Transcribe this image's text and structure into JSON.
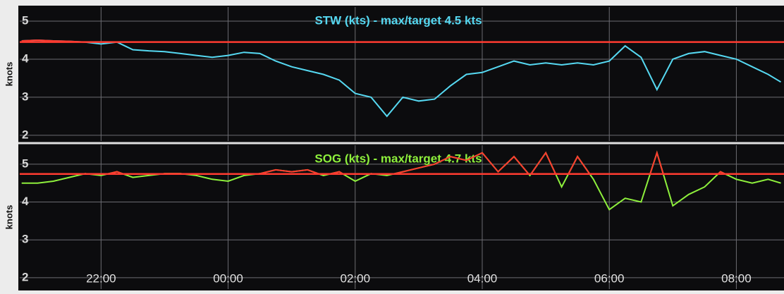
{
  "chart_data": [
    {
      "type": "line",
      "title": "STW (kts) - max/target 4.5 kts",
      "ylabel": "knots",
      "x": [
        20.75,
        21,
        21.25,
        21.5,
        21.75,
        22,
        22.25,
        22.5,
        22.75,
        23,
        23.25,
        23.5,
        23.75,
        24,
        24.25,
        24.5,
        24.75,
        25,
        25.25,
        25.5,
        25.75,
        26,
        26.25,
        26.5,
        26.75,
        27,
        27.25,
        27.5,
        27.75,
        28,
        28.25,
        28.5,
        28.75,
        29,
        29.25,
        29.5,
        29.75,
        30,
        30.25,
        30.5,
        30.75,
        31,
        31.25,
        31.5,
        31.75,
        32,
        32.25,
        32.5,
        32.7
      ],
      "values": [
        4.48,
        4.5,
        4.48,
        4.47,
        4.45,
        4.4,
        4.45,
        4.25,
        4.22,
        4.2,
        4.15,
        4.1,
        4.05,
        4.1,
        4.18,
        4.15,
        3.95,
        3.8,
        3.7,
        3.6,
        3.45,
        3.1,
        3.0,
        2.5,
        3.0,
        2.9,
        2.95,
        3.3,
        3.6,
        3.65,
        3.8,
        3.95,
        3.85,
        3.9,
        3.85,
        3.9,
        3.85,
        3.95,
        4.35,
        4.05,
        3.2,
        4.0,
        4.15,
        4.2,
        4.1,
        4.0,
        3.8,
        3.6,
        3.4
      ],
      "color": "#56d9f2",
      "target": 4.45,
      "above_color": "#ff3b30",
      "xlim": [
        20.72,
        32.75
      ],
      "ylim": [
        1.85,
        5.37
      ],
      "yticks": [
        2,
        3,
        4,
        5
      ],
      "grid": true
    },
    {
      "type": "line",
      "title": "SOG (kts) - max/target 4.7 kts",
      "ylabel": "knots",
      "x": [
        20.75,
        21,
        21.25,
        21.5,
        21.75,
        22,
        22.25,
        22.5,
        22.75,
        23,
        23.25,
        23.5,
        23.75,
        24,
        24.25,
        24.5,
        24.75,
        25,
        25.25,
        25.5,
        25.75,
        26,
        26.25,
        26.5,
        26.75,
        27,
        27.25,
        27.5,
        27.75,
        28,
        28.25,
        28.5,
        28.75,
        29,
        29.25,
        29.5,
        29.75,
        30,
        30.25,
        30.5,
        30.75,
        31,
        31.25,
        31.5,
        31.75,
        32,
        32.25,
        32.5,
        32.7
      ],
      "values": [
        4.5,
        4.5,
        4.55,
        4.65,
        4.75,
        4.7,
        4.8,
        4.65,
        4.7,
        4.75,
        4.75,
        4.7,
        4.6,
        4.55,
        4.7,
        4.75,
        4.85,
        4.8,
        4.85,
        4.7,
        4.8,
        4.55,
        4.75,
        4.7,
        4.8,
        4.9,
        5.0,
        5.2,
        5.1,
        5.3,
        4.8,
        5.2,
        4.7,
        5.3,
        4.4,
        5.2,
        4.6,
        3.8,
        4.1,
        4.0,
        5.3,
        3.9,
        4.2,
        4.4,
        4.8,
        4.6,
        4.5,
        4.6,
        4.5
      ],
      "color": "#8ef03c",
      "target": 4.74,
      "above_color": "#ff3b30",
      "xlim": [
        20.72,
        32.75
      ],
      "ylim": [
        1.7,
        5.5
      ],
      "yticks": [
        2,
        3,
        4,
        5
      ],
      "xticks": [
        {
          "value": 22,
          "label": "22:00"
        },
        {
          "value": 24,
          "label": "00:00"
        },
        {
          "value": 26,
          "label": "02:00"
        },
        {
          "value": 28,
          "label": "04:00"
        },
        {
          "value": 30,
          "label": "06:00"
        },
        {
          "value": 32,
          "label": "08:00"
        }
      ],
      "grid": true
    }
  ]
}
